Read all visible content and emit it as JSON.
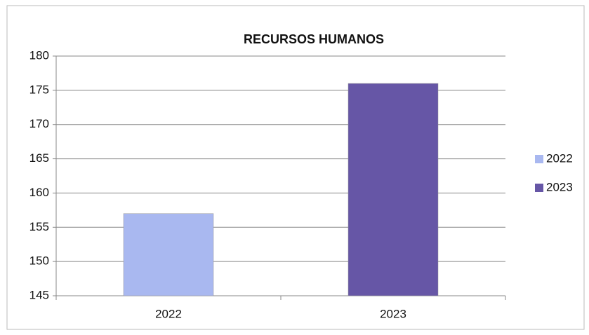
{
  "chart_data": {
    "type": "bar",
    "title": "RECURSOS HUMANOS",
    "categories": [
      "2022",
      "2023"
    ],
    "values": [
      157,
      176
    ],
    "colors": [
      "#a9b8f0",
      "#6656a6"
    ],
    "ylim": [
      145,
      180
    ],
    "yticks": [
      145,
      150,
      155,
      160,
      165,
      170,
      175,
      180
    ],
    "grid": true,
    "legend": "right"
  }
}
